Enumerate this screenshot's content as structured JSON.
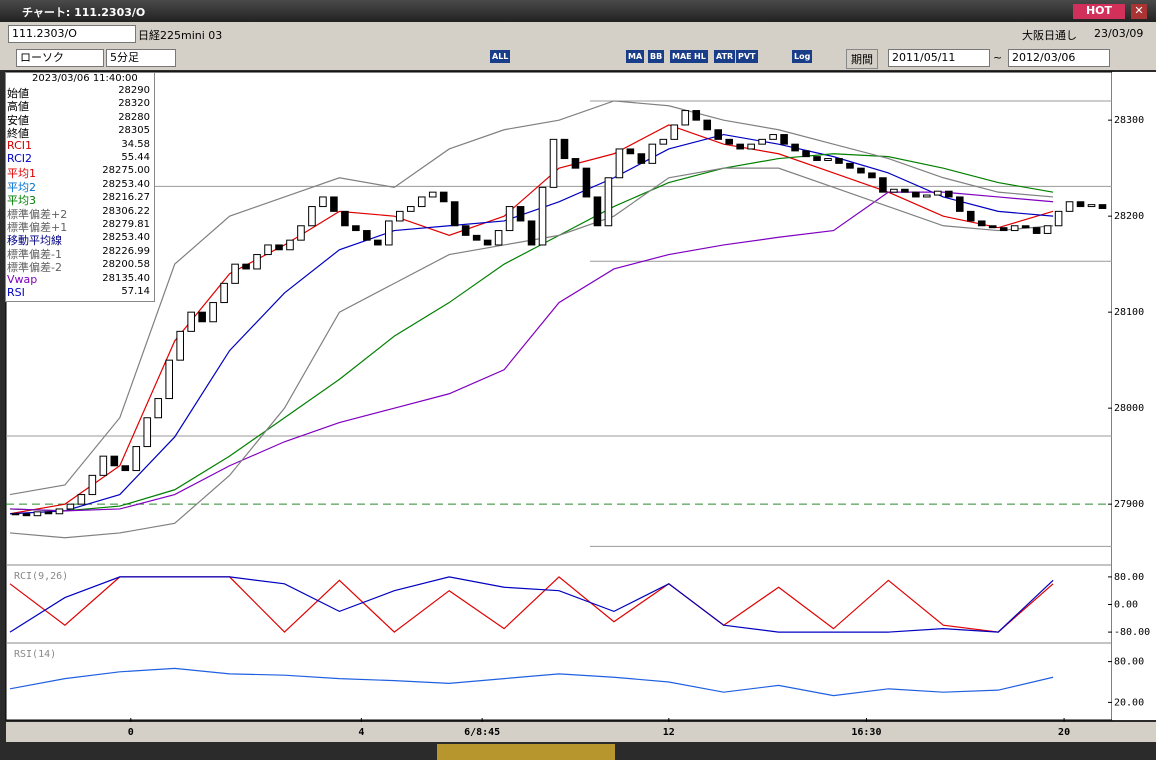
{
  "window": {
    "title": "チャート: 111.2303/O",
    "hot": "HOT"
  },
  "header": {
    "symbol": "111.2303/O",
    "name": "日経225mini 03",
    "session": "大阪日通し",
    "date": "23/03/09"
  },
  "toolbar": {
    "chart_type": "ローソク",
    "period": "5分足",
    "icons": [
      "ALL",
      "MA",
      "BB",
      "MAE",
      "HL",
      "ATR",
      "PVT",
      "Log"
    ],
    "range_label": "期間",
    "from": "2011/05/11",
    "sep": "~",
    "to": "2012/03/06"
  },
  "info": {
    "time": "2023/03/06 11:40:00",
    "rows": [
      {
        "label": "始値",
        "value": "28290",
        "color": "#000000"
      },
      {
        "label": "高値",
        "value": "28320",
        "color": "#000000"
      },
      {
        "label": "安値",
        "value": "28280",
        "color": "#000000"
      },
      {
        "label": "終値",
        "value": "28305",
        "color": "#000000"
      },
      {
        "label": "RCI1",
        "value": "34.58",
        "color": "#d00000"
      },
      {
        "label": "RCI2",
        "value": "55.44",
        "color": "#0000c0"
      },
      {
        "label": "平均1",
        "value": "28275.00",
        "color": "#e00000"
      },
      {
        "label": "平均2",
        "value": "28253.40",
        "color": "#0070d0"
      },
      {
        "label": "平均3",
        "value": "28216.27",
        "color": "#008000"
      },
      {
        "label": "標準偏差+2",
        "value": "28306.22",
        "color": "#606060"
      },
      {
        "label": "標準偏差+1",
        "value": "28279.81",
        "color": "#606060"
      },
      {
        "label": "移動平均線",
        "value": "28253.40",
        "color": "#000080"
      },
      {
        "label": "標準偏差-1",
        "value": "28226.99",
        "color": "#606060"
      },
      {
        "label": "標準偏差-2",
        "value": "28200.58",
        "color": "#606060"
      },
      {
        "label": "Vwap",
        "value": "28135.40",
        "color": "#8000c0"
      },
      {
        "label": "RSI",
        "value": "57.14",
        "color": "#0000c0"
      }
    ]
  },
  "chart_data": {
    "type": "candlestick",
    "xlim": [
      0,
      100
    ],
    "xticks": [
      {
        "value": 11,
        "label": "0"
      },
      {
        "value": 32,
        "label": "4"
      },
      {
        "value": 43,
        "label": "6/8:45"
      },
      {
        "value": 60,
        "label": "12"
      },
      {
        "value": 78,
        "label": "16:30"
      },
      {
        "value": 96,
        "label": "20"
      }
    ],
    "ylim": [
      27846,
      28346
    ],
    "yticks": [
      28300,
      28200,
      28100,
      28000,
      27900
    ],
    "hline": 27900,
    "levels": [
      28320,
      28231,
      28153,
      27971,
      27856
    ],
    "close": [
      27890,
      27888,
      27892,
      27890,
      27895,
      27900,
      27910,
      27930,
      27950,
      27940,
      27935,
      27960,
      27990,
      28010,
      28050,
      28080,
      28100,
      28090,
      28110,
      28130,
      28150,
      28145,
      28160,
      28170,
      28165,
      28175,
      28190,
      28210,
      28220,
      28205,
      28190,
      28185,
      28175,
      28170,
      28195,
      28205,
      28210,
      28220,
      28225,
      28215,
      28190,
      28180,
      28175,
      28170,
      28185,
      28210,
      28195,
      28170,
      28230,
      28280,
      28260,
      28250,
      28220,
      28190,
      28240,
      28270,
      28265,
      28255,
      28275,
      28280,
      28295,
      28310,
      28300,
      28290,
      28280,
      28275,
      28270,
      28275,
      28280,
      28285,
      28275,
      28268,
      28262,
      28258,
      28260,
      28255,
      28250,
      28245,
      28240,
      28225,
      28228,
      28225,
      28220,
      28222,
      28226,
      28220,
      28205,
      28195,
      28190,
      28188,
      28185,
      28190,
      28188,
      28182,
      28190,
      28205,
      28215,
      28210,
      28212,
      28208
    ],
    "line_x": [
      0,
      5,
      10,
      15,
      20,
      25,
      30,
      35,
      40,
      45,
      50,
      55,
      60,
      65,
      70,
      75,
      80,
      85,
      90,
      95
    ],
    "series": [
      {
        "name": "平均1",
        "color": "#e00000",
        "values": [
          27890,
          27900,
          27940,
          28070,
          28140,
          28170,
          28205,
          28200,
          28180,
          28200,
          28250,
          28265,
          28295,
          28275,
          28265,
          28245,
          28225,
          28200,
          28188,
          28205
        ]
      },
      {
        "name": "平均2",
        "color": "#0000c0",
        "values": [
          27890,
          27893,
          27910,
          27970,
          28060,
          28120,
          28165,
          28185,
          28190,
          28195,
          28215,
          28240,
          28270,
          28285,
          28275,
          28262,
          28245,
          28220,
          28205,
          28200
        ]
      },
      {
        "name": "平均3",
        "color": "#008000",
        "values": [
          27895,
          27893,
          27898,
          27915,
          27950,
          27990,
          28030,
          28075,
          28110,
          28150,
          28180,
          28210,
          28235,
          28250,
          28260,
          28265,
          28262,
          28250,
          28235,
          28225
        ]
      },
      {
        "name": "Vwap",
        "color": "#8000c0",
        "values": [
          27895,
          27893,
          27895,
          27910,
          27940,
          27965,
          27985,
          28000,
          28015,
          28040,
          28110,
          28145,
          28160,
          28170,
          28178,
          28185,
          28225,
          28225,
          28220,
          28215
        ]
      },
      {
        "name": "標準偏差+2",
        "color": "#808080",
        "values": [
          27910,
          27920,
          27990,
          28150,
          28200,
          28220,
          28240,
          28230,
          28270,
          28290,
          28300,
          28320,
          28315,
          28300,
          28290,
          28275,
          28260,
          28240,
          28225,
          28220
        ]
      },
      {
        "name": "標準偏差-2",
        "color": "#808080",
        "values": [
          27870,
          27865,
          27870,
          27880,
          27930,
          28000,
          28100,
          28130,
          28160,
          28170,
          28180,
          28200,
          28240,
          28250,
          28250,
          28230,
          28210,
          28190,
          28185,
          28190
        ]
      }
    ],
    "rci": {
      "label": "RCI(9,26)",
      "ylim": [
        -100,
        100
      ],
      "yticks": [
        {
          "value": 80,
          "label": "80.00"
        },
        {
          "value": 0,
          "label": "0.00"
        },
        {
          "value": -80,
          "label": "-80.00"
        }
      ],
      "series": [
        {
          "name": "RCI1",
          "color": "#e00000",
          "values": [
            60,
            -60,
            80,
            80,
            80,
            -80,
            70,
            -80,
            40,
            -70,
            80,
            -50,
            60,
            -60,
            50,
            -70,
            70,
            -60,
            -80,
            60
          ]
        },
        {
          "name": "RCI2",
          "color": "#0000c0",
          "values": [
            -80,
            20,
            80,
            80,
            80,
            60,
            -20,
            40,
            80,
            50,
            40,
            -20,
            60,
            -60,
            -80,
            -80,
            -80,
            -70,
            -80,
            70
          ]
        }
      ]
    },
    "rsi": {
      "label": "RSI(14)",
      "ylim": [
        0,
        100
      ],
      "yticks": [
        {
          "value": 80,
          "label": "80.00"
        },
        {
          "value": 20,
          "label": "20.00"
        }
      ],
      "series": [
        {
          "name": "RSI",
          "color": "#2060e0",
          "values": [
            40,
            55,
            65,
            70,
            62,
            60,
            55,
            52,
            48,
            55,
            62,
            57,
            50,
            35,
            45,
            30,
            40,
            35,
            38,
            57
          ]
        }
      ]
    }
  }
}
